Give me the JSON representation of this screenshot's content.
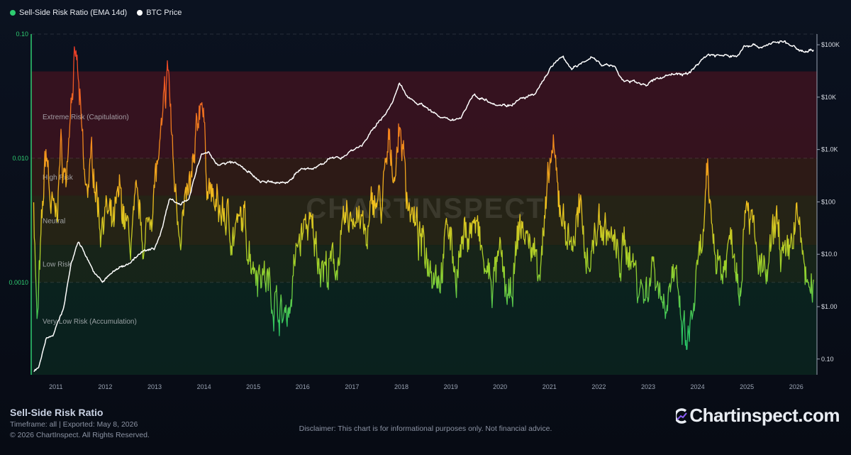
{
  "legend": [
    {
      "label": "Sell-Side Risk Ratio (EMA 14d)",
      "color": "#2ecc71"
    },
    {
      "label": "BTC Price",
      "color": "#ffffff"
    }
  ],
  "footer": {
    "title": "Sell-Side Risk Ratio",
    "subtitle": "Timeframe: all | Exported: May 8, 2026",
    "copyright": "© 2026 ChartInspect. All Rights Reserved.",
    "disclaimer": "Disclaimer: This chart is for informational purposes only. Not financial advice.",
    "brand": "Chartinspect.com"
  },
  "watermark": "CHARTINSPECT",
  "colors": {
    "background": "#0b1220",
    "risk_extreme": "#e23b2e",
    "risk_high": "#f28a1e",
    "risk_neutral": "#f2c41e",
    "risk_low": "#8fd12c",
    "risk_very_low": "#22c46b",
    "price": "#ffffff"
  },
  "chart_data": {
    "type": "line",
    "x_axis": {
      "ticks": [
        "2011",
        "2012",
        "2013",
        "2014",
        "2015",
        "2016",
        "2017",
        "2018",
        "2019",
        "2020",
        "2021",
        "2022",
        "2023",
        "2024",
        "2025",
        "2026"
      ],
      "range": [
        "2010-07",
        "2026-05"
      ]
    },
    "y_axis_left": {
      "scale": "log",
      "ticks": [
        "0.10",
        "0.010",
        "0.0010"
      ],
      "range": [
        0.00018,
        0.1
      ]
    },
    "y_axis_right": {
      "scale": "log",
      "ticks": [
        "$100K",
        "$10K",
        "$1.0K",
        "$100",
        "$10.0",
        "$1.00",
        "0.10"
      ],
      "range": [
        0.05,
        160000
      ]
    },
    "zones": [
      {
        "label": "Extreme Risk (Capitulation)",
        "from": 0.01,
        "to": 0.05,
        "color": "#5a1420"
      },
      {
        "label": "High Risk",
        "from": 0.005,
        "to": 0.01,
        "color": "#4a2512"
      },
      {
        "label": "Neutral",
        "from": 0.002,
        "to": 0.005,
        "color": "#3d3512"
      },
      {
        "label": "Low Risk",
        "from": 0.001,
        "to": 0.002,
        "color": "#23361a"
      },
      {
        "label": "Very Low Risk (Accumulation)",
        "from": 0.00018,
        "to": 0.001,
        "color": "#0c3324"
      }
    ],
    "series": [
      {
        "name": "Sell-Side Risk Ratio (EMA 14d)",
        "axis": "left",
        "x": [
          2010.55,
          2010.62,
          2010.7,
          2010.8,
          2010.9,
          2011.0,
          2011.1,
          2011.2,
          2011.3,
          2011.42,
          2011.5,
          2011.6,
          2011.75,
          2011.9,
          2012.0,
          2012.15,
          2012.3,
          2012.5,
          2012.65,
          2012.8,
          2013.0,
          2013.15,
          2013.28,
          2013.38,
          2013.5,
          2013.65,
          2013.8,
          2013.95,
          2014.05,
          2014.2,
          2014.4,
          2014.6,
          2014.8,
          2015.0,
          2015.2,
          2015.4,
          2015.6,
          2015.75,
          2015.9,
          2016.1,
          2016.3,
          2016.5,
          2016.7,
          2016.9,
          2017.1,
          2017.3,
          2017.45,
          2017.6,
          2017.75,
          2017.88,
          2017.97,
          2018.1,
          2018.25,
          2018.4,
          2018.6,
          2018.8,
          2018.95,
          2019.1,
          2019.3,
          2019.5,
          2019.7,
          2019.85,
          2020.0,
          2020.2,
          2020.4,
          2020.6,
          2020.8,
          2020.95,
          2021.05,
          2021.15,
          2021.3,
          2021.45,
          2021.6,
          2021.8,
          2022.0,
          2022.2,
          2022.4,
          2022.6,
          2022.8,
          2022.95,
          2023.1,
          2023.3,
          2023.5,
          2023.7,
          2023.8,
          2023.95,
          2024.1,
          2024.2,
          2024.35,
          2024.5,
          2024.7,
          2024.85,
          2025.0,
          2025.2,
          2025.4,
          2025.6,
          2025.8,
          2026.0,
          2026.15,
          2026.3,
          2026.35
        ],
        "y": [
          0.005,
          0.0004,
          0.002,
          0.012,
          0.004,
          0.003,
          0.012,
          0.006,
          0.035,
          0.06,
          0.02,
          0.005,
          0.01,
          0.003,
          0.004,
          0.0025,
          0.005,
          0.002,
          0.004,
          0.002,
          0.006,
          0.015,
          0.055,
          0.008,
          0.003,
          0.004,
          0.008,
          0.04,
          0.008,
          0.004,
          0.0035,
          0.0025,
          0.003,
          0.0015,
          0.0012,
          0.0008,
          0.0005,
          0.0007,
          0.002,
          0.003,
          0.0018,
          0.0012,
          0.0015,
          0.003,
          0.004,
          0.002,
          0.005,
          0.004,
          0.012,
          0.008,
          0.02,
          0.006,
          0.003,
          0.002,
          0.0015,
          0.0012,
          0.003,
          0.0012,
          0.0025,
          0.003,
          0.0012,
          0.001,
          0.0015,
          0.0006,
          0.003,
          0.002,
          0.0015,
          0.004,
          0.012,
          0.006,
          0.003,
          0.002,
          0.0035,
          0.0015,
          0.003,
          0.0025,
          0.0015,
          0.002,
          0.001,
          0.0008,
          0.0015,
          0.0007,
          0.0012,
          0.0004,
          0.0003,
          0.0008,
          0.002,
          0.006,
          0.002,
          0.0012,
          0.0025,
          0.001,
          0.006,
          0.0015,
          0.001,
          0.003,
          0.0012,
          0.0035,
          0.0015,
          0.0007,
          0.0008
        ]
      },
      {
        "name": "BTC Price",
        "axis": "right",
        "x": [
          2010.55,
          2010.65,
          2010.8,
          2010.95,
          2011.15,
          2011.3,
          2011.45,
          2011.6,
          2011.8,
          2011.95,
          2012.2,
          2012.5,
          2012.75,
          2013.0,
          2013.15,
          2013.3,
          2013.5,
          2013.7,
          2013.85,
          2013.95,
          2014.1,
          2014.3,
          2014.6,
          2014.9,
          2015.1,
          2015.4,
          2015.7,
          2015.95,
          2016.2,
          2016.5,
          2016.8,
          2017.0,
          2017.2,
          2017.4,
          2017.6,
          2017.8,
          2017.96,
          2018.1,
          2018.3,
          2018.5,
          2018.8,
          2018.95,
          2019.2,
          2019.45,
          2019.7,
          2019.95,
          2020.2,
          2020.45,
          2020.7,
          2020.95,
          2021.1,
          2021.28,
          2021.45,
          2021.6,
          2021.85,
          2022.05,
          2022.3,
          2022.5,
          2022.8,
          2022.95,
          2023.2,
          2023.5,
          2023.8,
          2024.0,
          2024.2,
          2024.5,
          2024.8,
          2024.95,
          2025.1,
          2025.3,
          2025.5,
          2025.75,
          2025.9,
          2026.1,
          2026.35
        ],
        "y": [
          0.06,
          0.07,
          0.25,
          0.3,
          0.9,
          6,
          18,
          10,
          4,
          3,
          5,
          7,
          11,
          13,
          30,
          120,
          90,
          120,
          400,
          800,
          850,
          500,
          580,
          380,
          250,
          230,
          240,
          420,
          420,
          640,
          720,
          980,
          1200,
          2200,
          4000,
          7000,
          18000,
          11000,
          8000,
          6500,
          4000,
          3700,
          4000,
          11000,
          9000,
          7200,
          7000,
          9500,
          11000,
          28000,
          45000,
          58000,
          35000,
          40000,
          60000,
          42000,
          40000,
          20000,
          19500,
          16800,
          23000,
          28000,
          27000,
          43000,
          65000,
          62000,
          60000,
          95000,
          100000,
          90000,
          108000,
          115000,
          95000,
          76000,
          80000
        ]
      }
    ]
  }
}
